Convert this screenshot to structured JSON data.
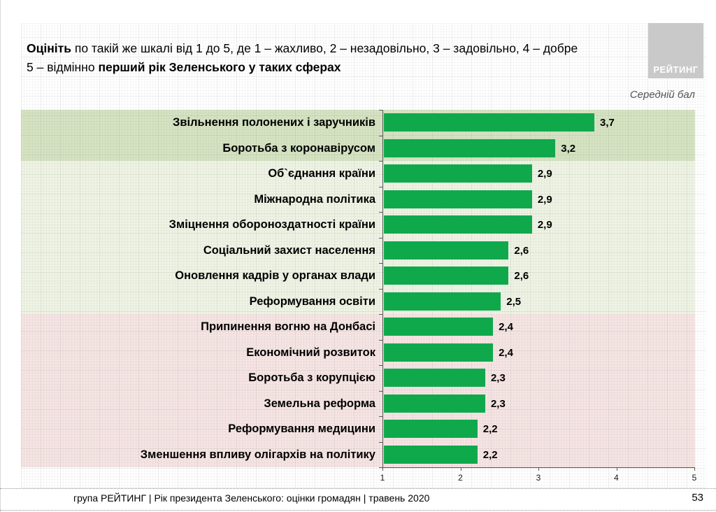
{
  "header": {
    "title": {
      "bold1": "Оцініть",
      "rest1": " по такій же шкалі від 1 до 5, де 1 – жахливо, 2 – незадовільно, 3 – задовільно, 4 – добре",
      "plain2": "5 – відмінно ",
      "bold2": "перший рік Зеленського у таких сферах"
    },
    "logo_text": "РЕЙТИНГ"
  },
  "chart_data": {
    "type": "bar",
    "orientation": "horizontal",
    "title": "Оцініть по такій же шкалі від 1 до 5, де 1 – жахливо, 2 – незадовільно, 3 – задовільно, 4 – добре, 5 – відмінно перший рік Зеленського у таких сферах",
    "unit_label": "Середній бал",
    "categories": [
      "Звільнення полонених і заручників",
      "Боротьба з коронавірусом",
      "Об`єднання країни",
      "Міжнародна політика",
      "Зміцнення обороноздатності країни",
      "Соціальний захист населення",
      "Оновлення кадрів у органах влади",
      "Реформування освіти",
      "Припинення вогню на Донбасі",
      "Економічний розвиток",
      "Боротьба з корупцією",
      "Земельна реформа",
      "Реформування медицини",
      "Зменшення впливу олігархів на політику"
    ],
    "values": [
      3.7,
      3.2,
      2.9,
      2.9,
      2.9,
      2.6,
      2.6,
      2.5,
      2.4,
      2.4,
      2.3,
      2.3,
      2.2,
      2.2
    ],
    "value_labels": [
      "3,7",
      "3,2",
      "2,9",
      "2,9",
      "2,9",
      "2,6",
      "2,6",
      "2,5",
      "2,4",
      "2,4",
      "2,3",
      "2,3",
      "2,2",
      "2,2"
    ],
    "xlim": [
      1,
      5
    ],
    "x_ticks": [
      "1",
      "2",
      "3",
      "4",
      "5"
    ],
    "grid": false,
    "bar_color": "#0fa94c",
    "row_bands": [
      {
        "from": 0,
        "to": 1,
        "color": "#d5e3c2"
      },
      {
        "from": 2,
        "to": 7,
        "color": "#eef3e4"
      },
      {
        "from": 8,
        "to": 13,
        "color": "#f5e4e3"
      }
    ]
  },
  "footer": {
    "source_text": "група РЕЙТИНГ |  Рік президента Зеленського: оцінки громадян | травень 2020",
    "page_number": "53"
  }
}
